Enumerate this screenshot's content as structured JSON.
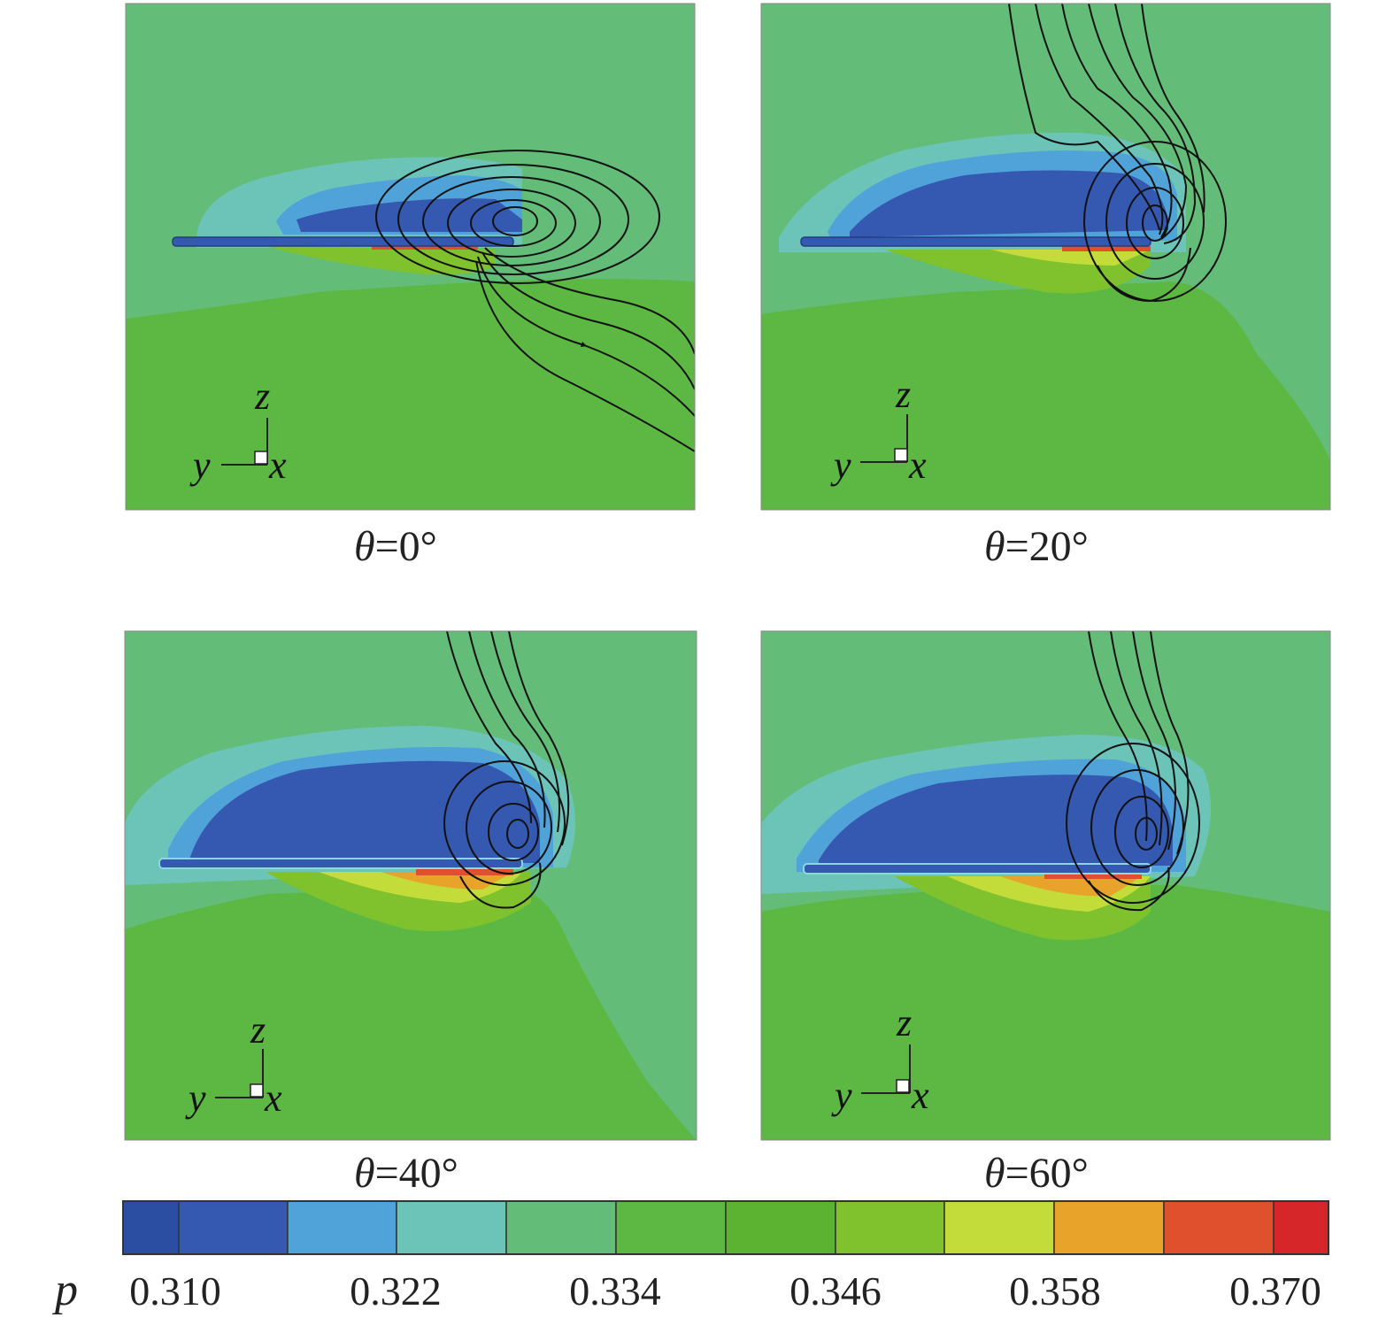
{
  "figure": {
    "panels": [
      {
        "id": "p0",
        "theta_symbol": "θ",
        "theta_value": "=0°",
        "axes": {
          "z": "z",
          "y": "y",
          "x": "x"
        },
        "angle_deg": 0
      },
      {
        "id": "p20",
        "theta_symbol": "θ",
        "theta_value": "=20°",
        "axes": {
          "z": "z",
          "y": "y",
          "x": "x"
        },
        "angle_deg": 20
      },
      {
        "id": "p40",
        "theta_symbol": "θ",
        "theta_value": "=40°",
        "axes": {
          "z": "z",
          "y": "y",
          "x": "x"
        },
        "angle_deg": 40
      },
      {
        "id": "p60",
        "theta_symbol": "θ",
        "theta_value": "=60°",
        "axes": {
          "z": "z",
          "y": "y",
          "x": "x"
        },
        "angle_deg": 60
      }
    ],
    "colorbar": {
      "variable": "p",
      "tick_labels": [
        "0.310",
        "0.322",
        "0.334",
        "0.346",
        "0.358",
        "0.370"
      ],
      "levels": [
        "#2b4ea3",
        "#3558b0",
        "#4fa3d9",
        "#6cc4b8",
        "#63bd78",
        "#5cb843",
        "#5cb332",
        "#7fc22e",
        "#c4dc3a",
        "#e8a32a",
        "#e0502c",
        "#d7262a"
      ]
    },
    "colors": {
      "background_green": "#63bd78",
      "lower_green": "#5cb843",
      "light_blue": "#6cc4b8",
      "mid_blue": "#4fa3d9",
      "dark_blue": "#3558b0",
      "darkest_blue": "#2b4ea3",
      "yellow_green": "#7fc22e",
      "yellow": "#c4dc3a",
      "orange": "#e8a32a",
      "red": "#e0502c",
      "streamline": "#111111"
    }
  }
}
